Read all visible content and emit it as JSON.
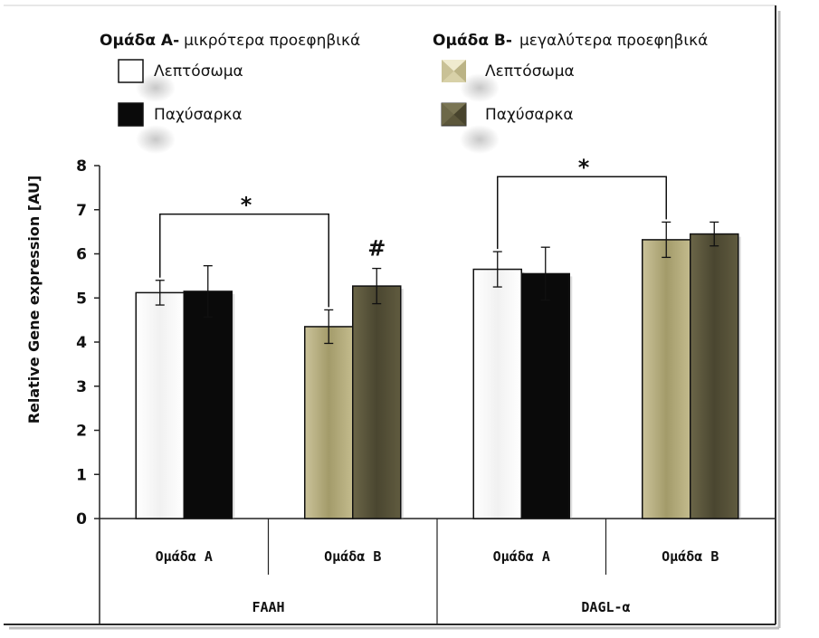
{
  "chart_data": {
    "type": "bar",
    "ylabel": "Relative Gene expression [AU]",
    "ylim": [
      0,
      8
    ],
    "yticks": [
      "0",
      "1",
      "2",
      "3",
      "4",
      "5",
      "6",
      "7",
      "8"
    ],
    "grid": false,
    "legend_position": "top",
    "legend": {
      "group_a_title_bold": "Ομάδα Α-",
      "group_a_title_rest": "μικρότερα προεφηβικά",
      "group_b_title_bold": "Ομάδα Β-",
      "group_b_title_rest": "μεγαλύτερα προεφηβικά",
      "lean_label_a": "Λεπτόσωμα",
      "obese_label_a": "Παχύσαρκα",
      "lean_label_b": "Λεπτόσωμα",
      "obese_label_b": "Παχύσαρκα"
    },
    "genes": [
      "FAAH",
      "DAGL-α"
    ],
    "subgroups": [
      "Ομάδα Α",
      "Ομάδα Β",
      "Ομάδα Α",
      "Ομάδα Β"
    ],
    "bars": [
      {
        "gene": "FAAH",
        "subgroup": "Ομάδα Α",
        "kind": "lean",
        "value": 5.12,
        "error": 0.28
      },
      {
        "gene": "FAAH",
        "subgroup": "Ομάδα Α",
        "kind": "obese",
        "value": 5.15,
        "error": 0.58
      },
      {
        "gene": "FAAH",
        "subgroup": "Ομάδα Β",
        "kind": "lean",
        "value": 4.35,
        "error": 0.38
      },
      {
        "gene": "FAAH",
        "subgroup": "Ομάδα Β",
        "kind": "obese",
        "value": 5.27,
        "error": 0.4
      },
      {
        "gene": "DAGL-α",
        "subgroup": "Ομάδα Α",
        "kind": "lean",
        "value": 5.65,
        "error": 0.4
      },
      {
        "gene": "DAGL-α",
        "subgroup": "Ομάδα Α",
        "kind": "obese",
        "value": 5.55,
        "error": 0.6
      },
      {
        "gene": "DAGL-α",
        "subgroup": "Ομάδα Β",
        "kind": "lean",
        "value": 6.32,
        "error": 0.4
      },
      {
        "gene": "DAGL-α",
        "subgroup": "Ομάδα Β",
        "kind": "obese",
        "value": 6.45,
        "error": 0.27
      }
    ],
    "annotations": {
      "star_1": "*",
      "hash": "#",
      "star_2": "*"
    },
    "significance_brackets": [
      {
        "from_bar": 0,
        "to_bar": 2,
        "top_value": 6.9,
        "label_key": "star_1"
      },
      {
        "from_bar": 4,
        "to_bar": 6,
        "top_value": 7.75,
        "label_key": "star_2"
      }
    ],
    "marker_over_bar": {
      "bar": 3,
      "label_key": "hash"
    },
    "colors": {
      "lean_a": "#ffffff",
      "obese_a": "#0a0a0a",
      "lean_b": "#b0a878",
      "obese_b": "#56523a"
    }
  }
}
